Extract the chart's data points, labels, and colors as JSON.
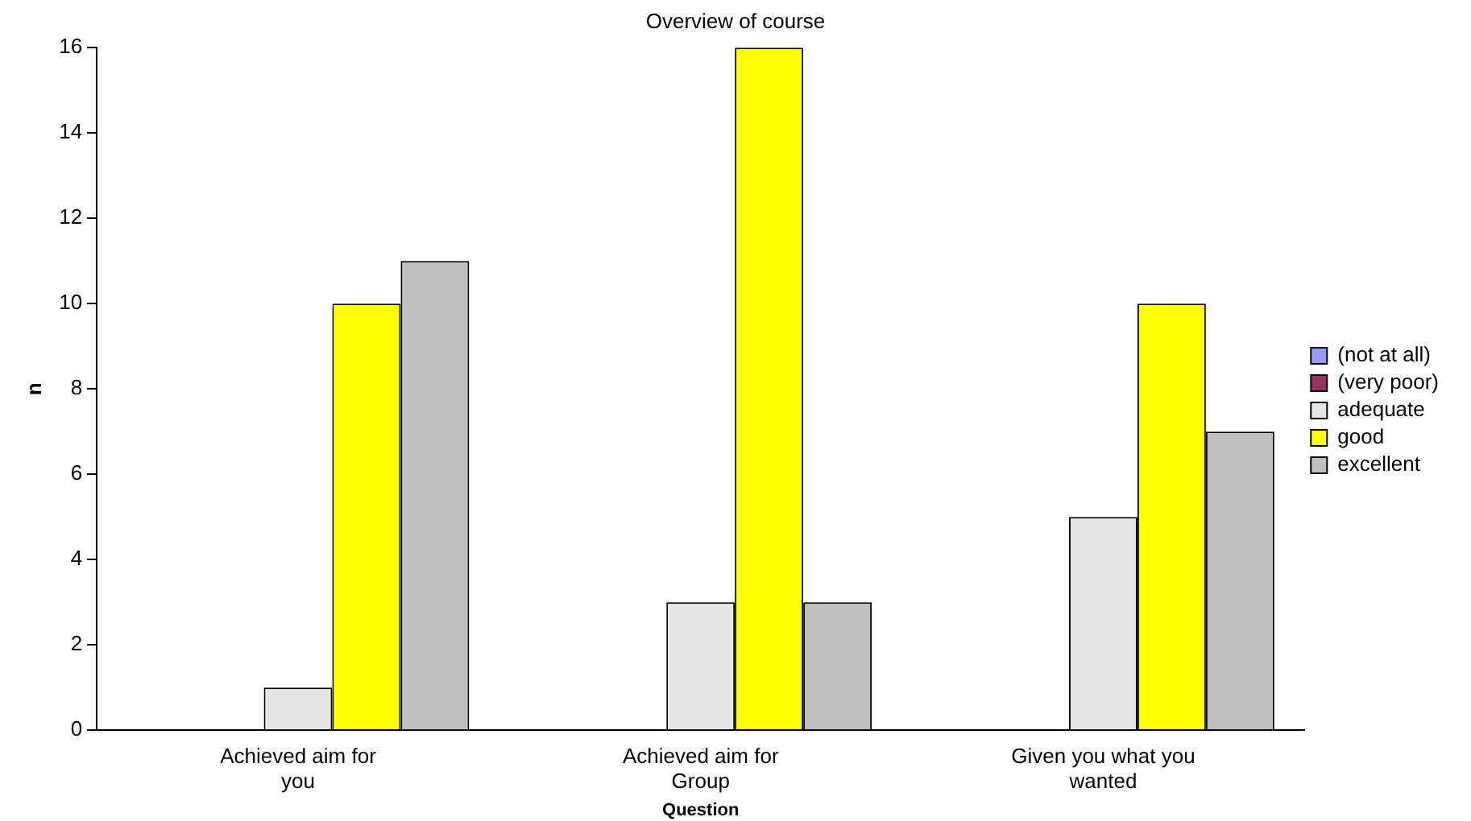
{
  "chart_data": {
    "type": "bar",
    "title": "Overview of course",
    "xlabel": "Question",
    "ylabel": "n",
    "categories": [
      "Achieved aim for you",
      "Achieved aim for Group",
      "Given you what you wanted"
    ],
    "series": [
      {
        "name": "(not at all)",
        "color": "#9999ff",
        "values": [
          0,
          0,
          0
        ]
      },
      {
        "name": "(very poor)",
        "color": "#993366",
        "values": [
          0,
          0,
          0
        ]
      },
      {
        "name": "adequate",
        "color": "#e6e6e6",
        "values": [
          1,
          3,
          5
        ]
      },
      {
        "name": "good",
        "color": "#ffff00",
        "values": [
          10,
          16,
          10
        ]
      },
      {
        "name": "excellent",
        "color": "#c0c0c0",
        "values": [
          11,
          3,
          7
        ]
      }
    ],
    "ylim": [
      0,
      16
    ],
    "yticks": [
      0,
      2,
      4,
      6,
      8,
      10,
      12,
      14,
      16
    ],
    "grid": false,
    "legend": "right"
  }
}
